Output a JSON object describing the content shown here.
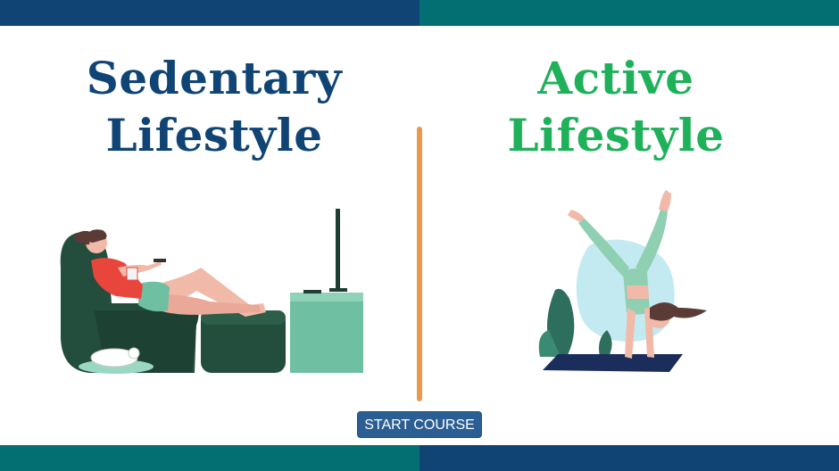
{
  "colors": {
    "navy": "#0f4475",
    "teal": "#036f72",
    "green": "#1fb05a",
    "divider": "#e8994c",
    "button": "#2b5f93"
  },
  "left_panel": {
    "title_line1": "Sedentary",
    "title_line2": "Lifestyle",
    "illustration": "person-on-couch-watching-tv"
  },
  "right_panel": {
    "title_line1": "Active",
    "title_line2": "Lifestyle",
    "illustration": "person-doing-handstand"
  },
  "start_button": {
    "label": "START COURSE"
  }
}
